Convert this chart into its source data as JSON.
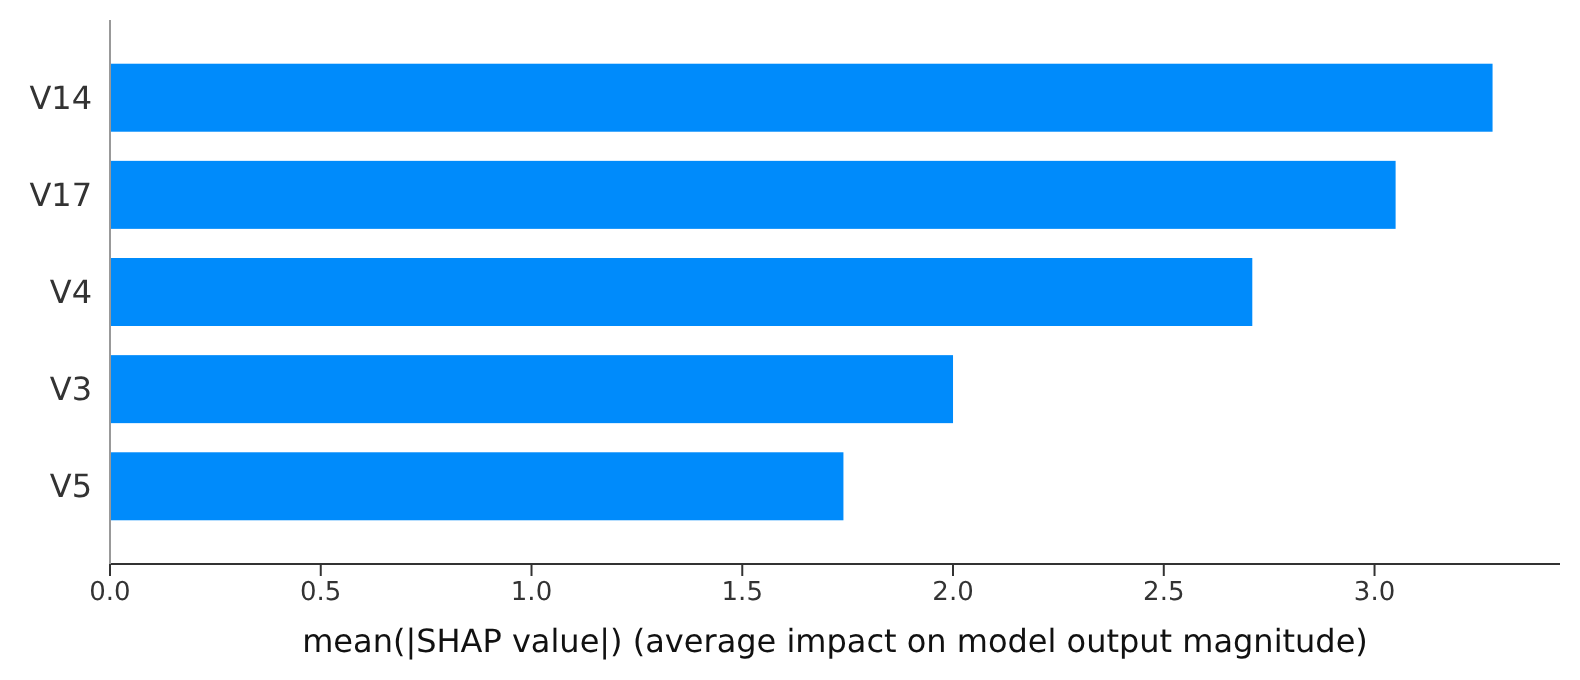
{
  "chart_data": {
    "type": "bar",
    "orientation": "horizontal",
    "xlabel": "mean(|SHAP value|) (average impact on model output magnitude)",
    "categories": [
      "V14",
      "V17",
      "V4",
      "V3",
      "V5"
    ],
    "values": [
      3.28,
      3.05,
      2.71,
      2.0,
      1.74
    ],
    "color": "#008bfb",
    "xlim": [
      0,
      3.44
    ],
    "xticks": [
      {
        "value": 0,
        "label": "0.0"
      },
      {
        "value": 0.5,
        "label": "0.5"
      },
      {
        "value": 1,
        "label": "1.0"
      },
      {
        "value": 1.5,
        "label": "1.5"
      },
      {
        "value": 2,
        "label": "2.0"
      },
      {
        "value": 2.5,
        "label": "2.5"
      },
      {
        "value": 3,
        "label": "3.0"
      }
    ],
    "grid": false
  }
}
